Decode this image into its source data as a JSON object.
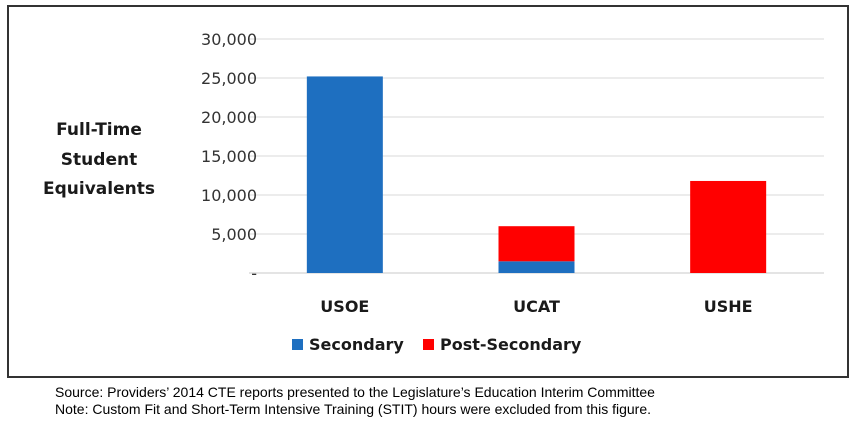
{
  "chart_data": {
    "type": "bar",
    "stacked": true,
    "categories": [
      "USOE",
      "UCAT",
      "USHE"
    ],
    "series": [
      {
        "name": "Secondary",
        "color": "#1e6fc0",
        "values": [
          25200,
          1500,
          0
        ]
      },
      {
        "name": "Post-Secondary",
        "color": "#ff0000",
        "values": [
          0,
          4500,
          11800
        ]
      }
    ],
    "ylabel_lines": [
      "Full-Time",
      "Student",
      "Equivalents"
    ],
    "ylim": [
      0,
      30000
    ],
    "yticks": [
      {
        "value": 0,
        "label": "-"
      },
      {
        "value": 5000,
        "label": "5,000"
      },
      {
        "value": 10000,
        "label": "10,000"
      },
      {
        "value": 15000,
        "label": "15,000"
      },
      {
        "value": 20000,
        "label": "20,000"
      },
      {
        "value": 25000,
        "label": "25,000"
      },
      {
        "value": 30000,
        "label": "30,000"
      }
    ],
    "grid": true,
    "legend_position": "bottom-center"
  },
  "notes": {
    "source": "Source: Providers’ 2014 CTE reports presented to the Legislature’s Education Interim Committee",
    "note": "Note: Custom Fit and Short-Term Intensive Training (STIT) hours were excluded from this figure."
  }
}
